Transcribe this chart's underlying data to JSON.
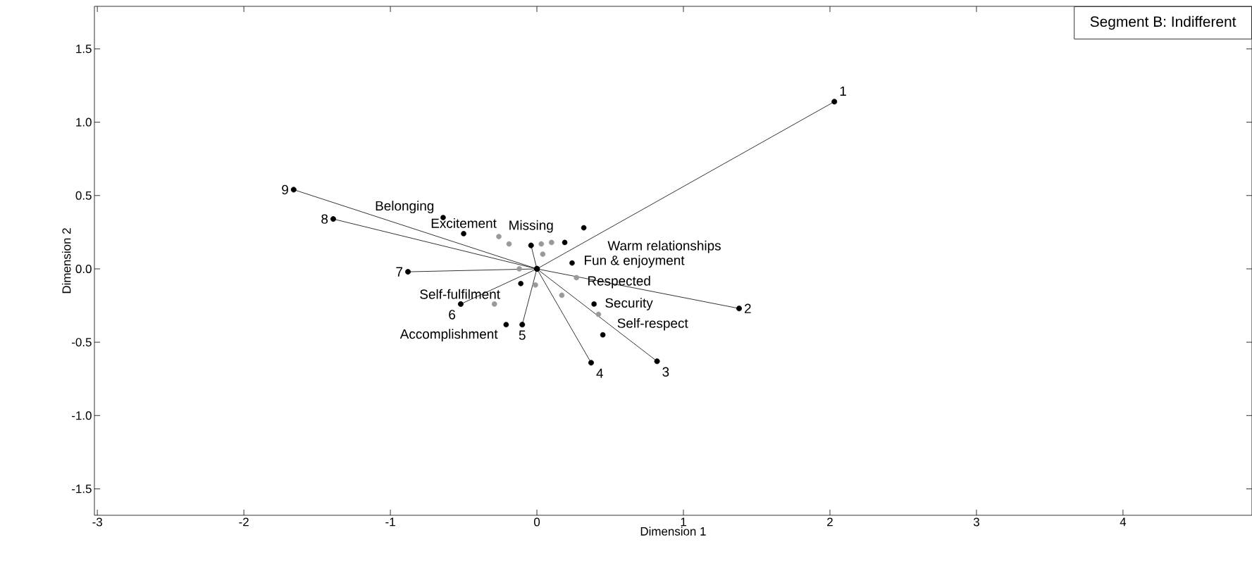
{
  "chart_data": {
    "type": "scatter",
    "title": "Segment B: Indifferent",
    "xlabel": "Dimension 1",
    "ylabel": "Dimension 2",
    "xlim": [
      -3.02,
      4.88
    ],
    "ylim": [
      -1.68,
      1.79
    ],
    "xticks": [
      -3,
      -2,
      -1,
      0,
      1,
      2,
      3,
      4
    ],
    "yticks": [
      {
        "value": -1.5,
        "label": "-1.5"
      },
      {
        "value": -1.0,
        "label": "-1.0"
      },
      {
        "value": -0.5,
        "label": "-0.5"
      },
      {
        "value": 0,
        "label": "0.0"
      },
      {
        "value": 0.5,
        "label": "0.5"
      },
      {
        "value": 1.0,
        "label": "1.0"
      },
      {
        "value": 1.5,
        "label": "1.5"
      }
    ],
    "grid": false,
    "marker": "circle",
    "series": [
      {
        "type": "line",
        "color": "#000000",
        "x": [
          0,
          2.03
        ],
        "values": [
          0,
          1.14
        ]
      },
      {
        "type": "line",
        "color": "#000000",
        "x": [
          0,
          1.38
        ],
        "values": [
          0,
          -0.27
        ]
      },
      {
        "type": "line",
        "color": "#000000",
        "x": [
          0,
          0.82
        ],
        "values": [
          0,
          -0.63
        ]
      },
      {
        "type": "line",
        "color": "#000000",
        "x": [
          0,
          0.37
        ],
        "values": [
          0,
          -0.64
        ]
      },
      {
        "type": "line",
        "color": "#000000",
        "x": [
          0,
          -0.1
        ],
        "values": [
          0,
          -0.38
        ]
      },
      {
        "type": "line",
        "color": "#000000",
        "x": [
          0,
          -0.52
        ],
        "values": [
          0,
          -0.24
        ]
      },
      {
        "type": "line",
        "color": "#000000",
        "x": [
          0,
          -0.88
        ],
        "values": [
          0,
          -0.02
        ]
      },
      {
        "type": "line",
        "color": "#000000",
        "x": [
          0,
          -1.39
        ],
        "values": [
          0,
          0.34
        ]
      },
      {
        "type": "line",
        "color": "#000000",
        "x": [
          0,
          -1.66
        ],
        "values": [
          0,
          0.54
        ]
      },
      {
        "type": "line",
        "color": "#000000",
        "x": [
          0,
          -0.04
        ],
        "values": [
          0,
          0.16
        ]
      },
      {
        "type": "scatter",
        "color": "#000000",
        "x": [
          -0.64,
          -0.5,
          0.32,
          0.19,
          0.24,
          -0.11,
          -0.21,
          0.39,
          0.45
        ],
        "values": [
          0.35,
          0.24,
          0.28,
          0.18,
          0.04,
          -0.1,
          -0.38,
          -0.24,
          -0.45
        ]
      },
      {
        "type": "scatter",
        "color": "#999999",
        "x": [
          -0.26,
          -0.19,
          0.03,
          0.1,
          0.04,
          -0.12,
          -0.01,
          0.17,
          -0.29,
          0.27,
          0.42
        ],
        "values": [
          0.22,
          0.17,
          0.17,
          0.18,
          0.1,
          0.0,
          -0.11,
          -0.18,
          -0.24,
          -0.06,
          -0.31
        ]
      }
    ],
    "annotations": [
      {
        "text": "1",
        "x": 2.03,
        "y": 1.14
      },
      {
        "text": "2",
        "x": 1.38,
        "y": -0.27
      },
      {
        "text": "3",
        "x": 0.82,
        "y": -0.63
      },
      {
        "text": "4",
        "x": 0.37,
        "y": -0.64
      },
      {
        "text": "5",
        "x": -0.1,
        "y": -0.38
      },
      {
        "text": "6",
        "x": -0.52,
        "y": -0.24
      },
      {
        "text": "7",
        "x": -0.88,
        "y": -0.02
      },
      {
        "text": "8",
        "x": -1.39,
        "y": 0.34
      },
      {
        "text": "9",
        "x": -1.66,
        "y": 0.54
      },
      {
        "text": "Belonging",
        "x": -0.64,
        "y": 0.35
      },
      {
        "text": "Warm relationships",
        "x": 0.32,
        "y": 0.28
      },
      {
        "text": "Missing",
        "x": -0.04,
        "y": 0.16
      },
      {
        "text": "Fun & enjoyment",
        "x": 0.19,
        "y": 0.18
      },
      {
        "text": "Excitement",
        "x": -0.5,
        "y": 0.24
      },
      {
        "text": "Respected",
        "x": 0.24,
        "y": 0.04
      },
      {
        "text": "Self-fulfilment",
        "x": -0.11,
        "y": -0.1
      },
      {
        "text": "Security",
        "x": 0.39,
        "y": -0.24
      },
      {
        "text": "Self-respect",
        "x": 0.45,
        "y": -0.45
      },
      {
        "text": "Accomplishment",
        "x": -0.21,
        "y": -0.38
      }
    ]
  }
}
